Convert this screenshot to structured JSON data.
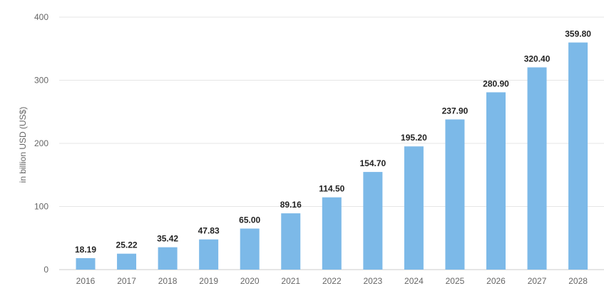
{
  "chart_data": {
    "type": "bar",
    "categories": [
      "2016",
      "2017",
      "2018",
      "2019",
      "2020",
      "2021",
      "2022",
      "2023",
      "2024",
      "2025",
      "2026",
      "2027",
      "2028"
    ],
    "values": [
      18.19,
      25.22,
      35.42,
      47.83,
      65.0,
      89.16,
      114.5,
      154.7,
      195.2,
      237.9,
      280.9,
      320.4,
      359.8
    ],
    "value_labels": [
      "18.19",
      "25.22",
      "35.42",
      "47.83",
      "65.00",
      "89.16",
      "114.50",
      "154.70",
      "195.20",
      "237.90",
      "280.90",
      "320.40",
      "359.80"
    ],
    "ylabel": "in billion USD (US$)",
    "ylim": [
      0,
      400
    ],
    "yticks": [
      "0",
      "100",
      "200",
      "300",
      "400"
    ],
    "grid": true,
    "bar_color": "#7cb9e8"
  }
}
